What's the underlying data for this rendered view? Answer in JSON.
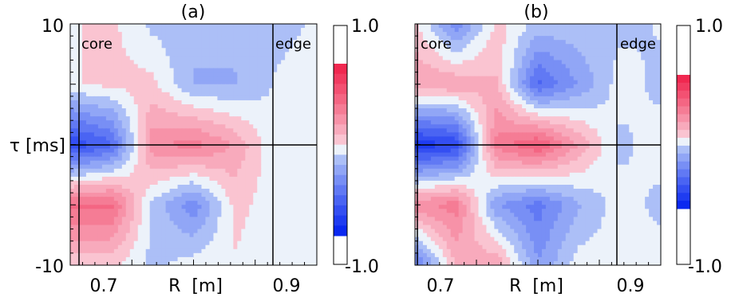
{
  "chart_data": [
    {
      "type": "heatmap",
      "title": "(a)",
      "xlabel": "R  [m]",
      "ylabel": "τ [ms]",
      "x_ticks": [
        "0.7",
        "0.9"
      ],
      "y_ticks": [
        "10",
        "-10"
      ],
      "xlim": [
        0.64,
        0.98
      ],
      "ylim": [
        -10,
        10
      ],
      "region_labels": [
        "core",
        "edge"
      ],
      "vertical_lines": [
        0.65,
        0.89
      ],
      "horizontal_line": 0,
      "colorbar": {
        "min_label": "-1.0",
        "max_label": "1.0",
        "range": [
          -1.0,
          1.0
        ]
      },
      "x": [
        0.65,
        0.7,
        0.75,
        0.8,
        0.85,
        0.9,
        0.95
      ],
      "y": [
        10,
        5,
        0,
        -5,
        -10
      ],
      "z": [
        [
          0.05,
          0.1,
          -0.1,
          -0.15,
          -0.15,
          -0.1,
          -0.05
        ],
        [
          0.05,
          0.1,
          0.1,
          -0.2,
          -0.2,
          -0.05,
          0.0
        ],
        [
          -0.8,
          -0.6,
          0.4,
          0.5,
          0.3,
          -0.05,
          0.0
        ],
        [
          0.6,
          0.6,
          -0.1,
          -0.4,
          0.1,
          0.0,
          0.0
        ],
        [
          0.1,
          0.1,
          -0.1,
          0.0,
          0.05,
          0.0,
          0.0
        ]
      ]
    },
    {
      "type": "heatmap",
      "title": "(b)",
      "xlabel": "R  [m]",
      "x_ticks": [
        "0.7",
        "0.9"
      ],
      "xlim": [
        0.64,
        0.98
      ],
      "ylim": [
        -10,
        10
      ],
      "region_labels": [
        "core",
        "edge"
      ],
      "vertical_lines": [
        0.65,
        0.89
      ],
      "horizontal_line": 0,
      "colorbar": {
        "min_label": "-1.0",
        "max_label": "1.0",
        "range": [
          -1.0,
          1.0
        ]
      },
      "x": [
        0.65,
        0.7,
        0.75,
        0.8,
        0.85,
        0.9,
        0.95
      ],
      "y": [
        10,
        5,
        0,
        -5,
        -10
      ],
      "z": [
        [
          0.1,
          -0.4,
          0.1,
          -0.1,
          -0.1,
          -0.1,
          -0.05
        ],
        [
          0.3,
          0.3,
          0.2,
          -0.6,
          -0.3,
          0.0,
          -0.1
        ],
        [
          -0.9,
          -0.8,
          0.5,
          0.7,
          0.3,
          -0.1,
          0.0
        ],
        [
          0.4,
          0.5,
          -0.3,
          -0.5,
          -0.2,
          0.0,
          -0.1
        ],
        [
          -0.5,
          0.2,
          0.3,
          -0.3,
          0.0,
          0.0,
          0.0
        ]
      ]
    }
  ]
}
